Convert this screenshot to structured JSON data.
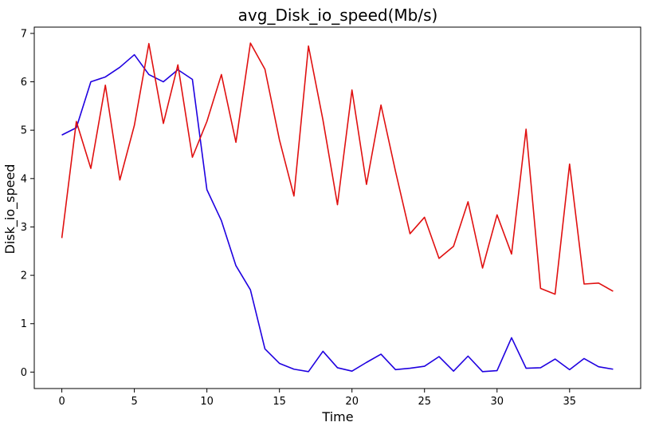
{
  "chart_data": {
    "type": "line",
    "title": "avg_Disk_io_speed(Mb/s)",
    "xlabel": "Time",
    "ylabel": "Disk_io_speed",
    "xlim": [
      -1.9,
      39.9
    ],
    "ylim": [
      -0.34,
      7.13
    ],
    "xticks": [
      0,
      5,
      10,
      15,
      20,
      25,
      30,
      35
    ],
    "yticks": [
      0,
      1,
      2,
      3,
      4,
      5,
      6,
      7
    ],
    "grid": false,
    "x": [
      0,
      1,
      2,
      3,
      4,
      5,
      6,
      7,
      8,
      9,
      10,
      11,
      12,
      13,
      14,
      15,
      16,
      17,
      18,
      19,
      20,
      21,
      22,
      23,
      24,
      25,
      26,
      27,
      28,
      29,
      30,
      31,
      32,
      33,
      34,
      35,
      36,
      37,
      38
    ],
    "series": [
      {
        "color": "#1f00e0",
        "values": [
          4.9,
          5.05,
          6.0,
          6.1,
          6.3,
          6.56,
          6.15,
          6.0,
          6.25,
          6.05,
          3.77,
          3.13,
          2.2,
          1.7,
          0.48,
          0.18,
          0.06,
          0.01,
          0.43,
          0.09,
          0.02,
          0.2,
          0.37,
          0.05,
          0.08,
          0.12,
          0.32,
          0.02,
          0.33,
          0.01,
          0.03,
          0.71,
          0.08,
          0.09,
          0.27,
          0.05,
          0.28,
          0.11,
          0.06
        ]
      },
      {
        "color": "#e01010",
        "values": [
          2.77,
          5.18,
          4.21,
          5.93,
          3.97,
          5.1,
          6.79,
          5.14,
          6.35,
          4.44,
          5.18,
          6.15,
          4.75,
          6.8,
          6.26,
          4.8,
          3.64,
          6.74,
          5.21,
          3.46,
          5.83,
          3.88,
          5.52,
          4.15,
          2.86,
          3.2,
          2.35,
          2.6,
          3.52,
          2.15,
          3.25,
          2.44,
          5.02,
          1.73,
          1.61,
          4.3,
          1.82,
          1.84,
          1.67
        ]
      }
    ]
  }
}
